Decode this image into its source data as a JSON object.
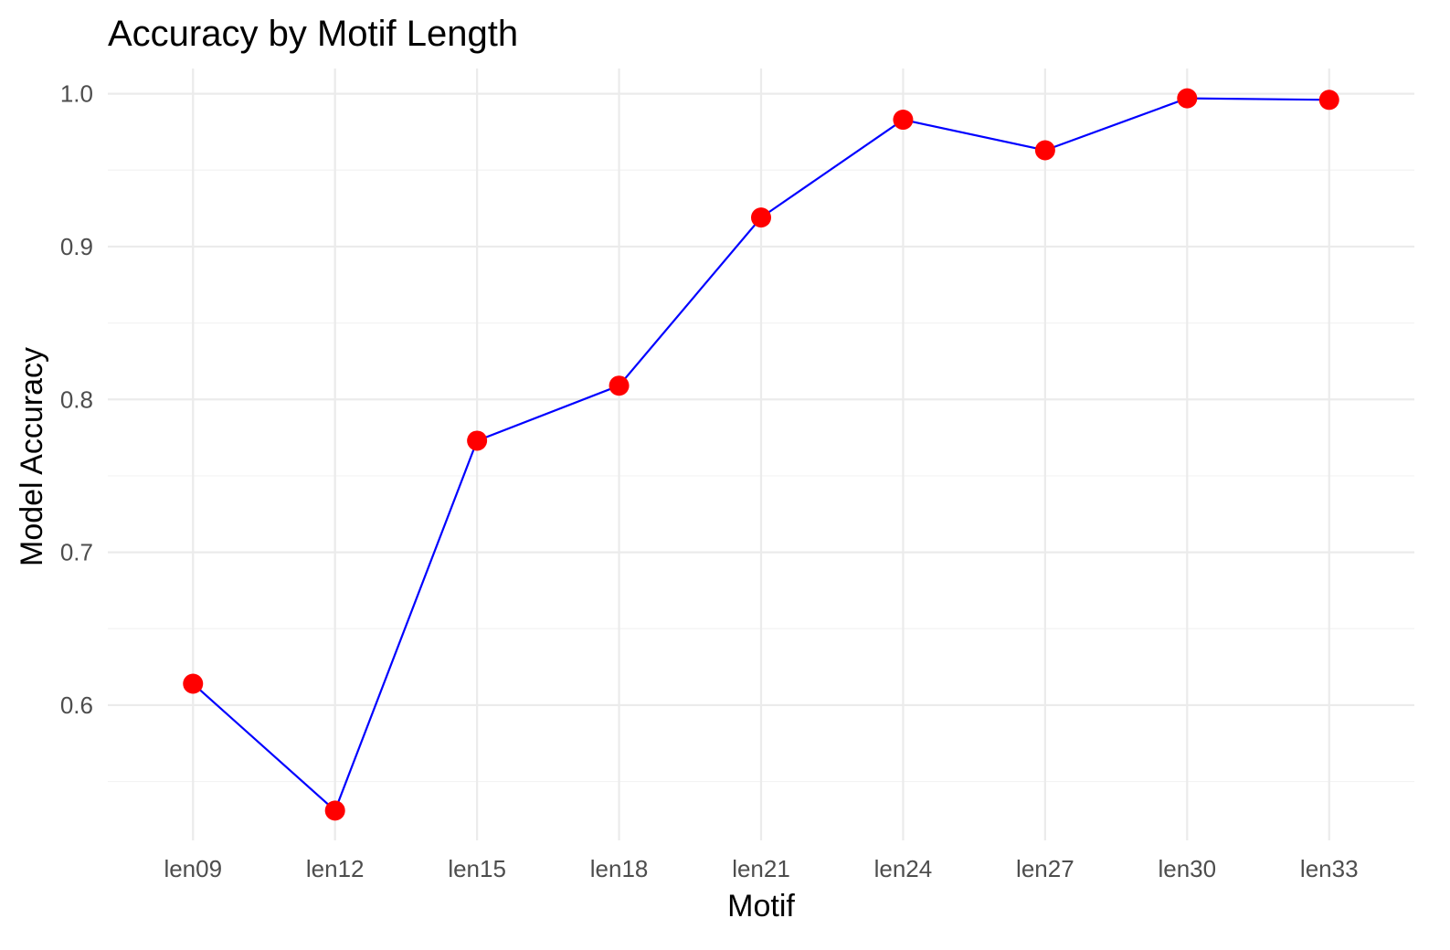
{
  "chart_data": {
    "type": "line",
    "title": "Accuracy by Motif Length",
    "xlabel": "Motif",
    "ylabel": "Model Accuracy",
    "categories": [
      "len09",
      "len12",
      "len15",
      "len18",
      "len21",
      "len24",
      "len27",
      "len30",
      "len33"
    ],
    "series": [
      {
        "values": [
          0.614,
          0.531,
          0.773,
          0.809,
          0.919,
          0.983,
          0.963,
          0.997,
          0.996
        ]
      }
    ],
    "yticks": [
      0.6,
      0.7,
      0.8,
      0.9,
      1.0
    ],
    "ytick_labels": [
      "0.6",
      "0.7",
      "0.8",
      "0.9",
      "1.0"
    ],
    "ylim": [
      0.5115,
      1.0165
    ],
    "grid": true,
    "legend": "none",
    "colors": {
      "line": "#0000ff",
      "points": "#ff0000",
      "grid": "#ebebeb",
      "background": "#ffffff"
    }
  }
}
